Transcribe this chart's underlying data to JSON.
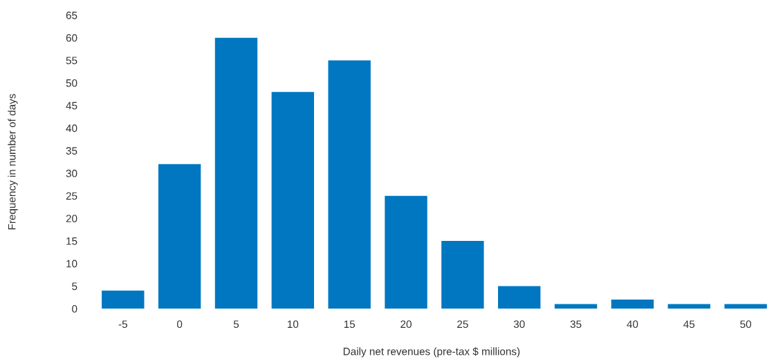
{
  "chart_data": {
    "type": "bar",
    "xlabel": "Daily net revenues (pre-tax $ millions)",
    "ylabel": "Frequency in number of days",
    "categories": [
      "-5",
      "0",
      "5",
      "10",
      "15",
      "20",
      "25",
      "30",
      "35",
      "40",
      "45",
      "50"
    ],
    "values": [
      4,
      32,
      60,
      48,
      55,
      25,
      15,
      5,
      1,
      2,
      1,
      1
    ],
    "color": "#0077c0",
    "ylim": [
      0,
      65
    ],
    "yticks": [
      0,
      5,
      10,
      15,
      20,
      25,
      30,
      35,
      40,
      45,
      50,
      55,
      60,
      65
    ],
    "grid": false
  }
}
